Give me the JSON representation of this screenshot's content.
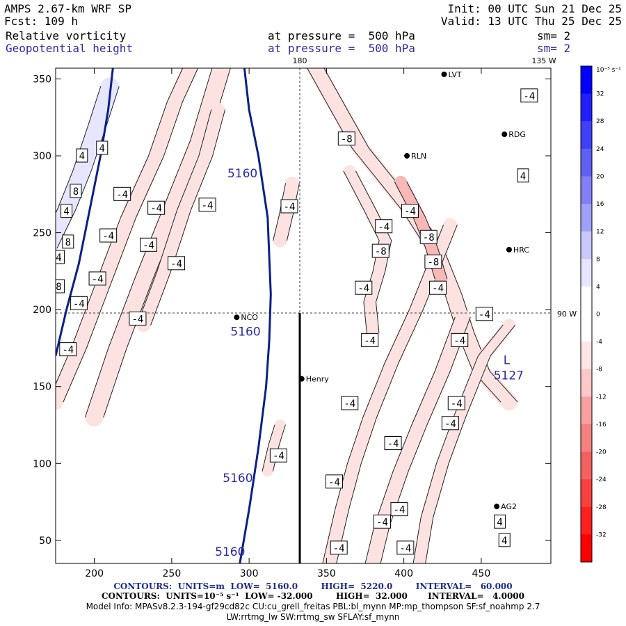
{
  "header": {
    "model": "AMPS 2.67-km WRF SP",
    "forecast": "Fcst: 109 h",
    "init": "Init: 00 UTC Sun 21 Dec 25",
    "valid": "Valid: 13 UTC Thu 25 Dec 25",
    "field1_name": "Relative vorticity",
    "field1_level": "at pressure =  500 hPa",
    "field1_smooth": "sm= 2",
    "field2_name": "Geopotential height",
    "field2_level": "at pressure =  500 hPa",
    "field2_smooth": "sm= 2"
  },
  "map_labels": {
    "lon_180": "180",
    "lon_135w": "135 W",
    "lon_90w": "90 W",
    "low_letter": "L",
    "low_value": "5127"
  },
  "stations": [
    {
      "name": "NCO",
      "x": 292,
      "y": 195
    },
    {
      "name": "Henry",
      "x": 334,
      "y": 155
    },
    {
      "name": "HRC",
      "x": 468,
      "y": 239
    },
    {
      "name": "AG2",
      "x": 460,
      "y": 72
    },
    {
      "name": "RLN",
      "x": 402,
      "y": 300
    },
    {
      "name": "RDG",
      "x": 465,
      "y": 314
    },
    {
      "name": "LVT",
      "x": 426,
      "y": 353
    }
  ],
  "colorbar": {
    "unit_label": "10⁻⁵ s⁻¹",
    "ticks": [
      "32",
      "28",
      "24",
      "20",
      "16",
      "12",
      "8",
      "4",
      "0",
      "-4",
      "-8",
      "-12",
      "-16",
      "-20",
      "-24",
      "-28",
      "-32"
    ],
    "colors": [
      "#0000ff",
      "#2020ff",
      "#4040f8",
      "#6060f4",
      "#8080f4",
      "#a0a0f8",
      "#c8c8fc",
      "#e6e6ff",
      "#ffffff",
      "#ffffff",
      "#ffe6e6",
      "#fcc8c8",
      "#f8a0a0",
      "#f48080",
      "#f46060",
      "#f84040",
      "#ff2020",
      "#ff0000"
    ]
  },
  "chart_data": {
    "type": "contour",
    "x_ticks": [
      200,
      250,
      300,
      350,
      400,
      450
    ],
    "y_ticks": [
      50,
      100,
      150,
      200,
      250,
      300,
      350
    ],
    "xlim": [
      175,
      495
    ],
    "ylim": [
      35,
      357
    ],
    "height_contours": [
      {
        "label": "5160",
        "points": [
          [
            175,
            170
          ],
          [
            182,
            200
          ],
          [
            190,
            230
          ],
          [
            198,
            270
          ],
          [
            204,
            300
          ],
          [
            209,
            330
          ],
          [
            212,
            357
          ]
        ]
      },
      {
        "label": "5160",
        "points": [
          [
            294,
            35
          ],
          [
            300,
            70
          ],
          [
            306,
            110
          ],
          [
            311,
            150
          ],
          [
            313,
            180
          ],
          [
            314,
            210
          ],
          [
            312,
            260
          ],
          [
            306,
            300
          ],
          [
            300,
            330
          ],
          [
            297,
            357
          ]
        ]
      }
    ],
    "height_contour_labels": [
      {
        "text": "5160",
        "x": 286,
        "y": 286
      },
      {
        "text": "5160",
        "x": 288,
        "y": 183
      },
      {
        "text": "5160",
        "x": 283,
        "y": 88
      },
      {
        "text": "5160",
        "x": 278,
        "y": 40
      }
    ],
    "vorticity_labels": [
      {
        "text": "4",
        "x": 205,
        "y": 305
      },
      {
        "text": "4",
        "x": 192,
        "y": 300
      },
      {
        "text": "8",
        "x": 188,
        "y": 277
      },
      {
        "text": "4",
        "x": 182,
        "y": 264
      },
      {
        "text": "8",
        "x": 183,
        "y": 244
      },
      {
        "text": "4",
        "x": 177,
        "y": 234
      },
      {
        "text": "8",
        "x": 177,
        "y": 215
      },
      {
        "text": "-4",
        "x": 218,
        "y": 275
      },
      {
        "text": "-4",
        "x": 209,
        "y": 248
      },
      {
        "text": "-4",
        "x": 202,
        "y": 220
      },
      {
        "text": "-4",
        "x": 190,
        "y": 204
      },
      {
        "text": "-4",
        "x": 183,
        "y": 174
      },
      {
        "text": "-4",
        "x": 240,
        "y": 266
      },
      {
        "text": "-4",
        "x": 235,
        "y": 242
      },
      {
        "text": "-4",
        "x": 228,
        "y": 194
      },
      {
        "text": "-4",
        "x": 253,
        "y": 230
      },
      {
        "text": "-4",
        "x": 273,
        "y": 268
      },
      {
        "text": "-4",
        "x": 326,
        "y": 267
      },
      {
        "text": "-8",
        "x": 363,
        "y": 311
      },
      {
        "text": "-4",
        "x": 404,
        "y": 264
      },
      {
        "text": "-4",
        "x": 387,
        "y": 254
      },
      {
        "text": "-8",
        "x": 416,
        "y": 247
      },
      {
        "text": "-8",
        "x": 385,
        "y": 238
      },
      {
        "text": "-8",
        "x": 419,
        "y": 231
      },
      {
        "text": "-4",
        "x": 374,
        "y": 214
      },
      {
        "text": "-4",
        "x": 422,
        "y": 214
      },
      {
        "text": "-4",
        "x": 452,
        "y": 197
      },
      {
        "text": "-4",
        "x": 378,
        "y": 180
      },
      {
        "text": "-4",
        "x": 436,
        "y": 180
      },
      {
        "text": "-4",
        "x": 365,
        "y": 139
      },
      {
        "text": "-4",
        "x": 434,
        "y": 139
      },
      {
        "text": "-4",
        "x": 430,
        "y": 126
      },
      {
        "text": "-4",
        "x": 393,
        "y": 113
      },
      {
        "text": "-4",
        "x": 319,
        "y": 105
      },
      {
        "text": "-4",
        "x": 355,
        "y": 88
      },
      {
        "text": "-4",
        "x": 397,
        "y": 70
      },
      {
        "text": "-4",
        "x": 386,
        "y": 62
      },
      {
        "text": "-4",
        "x": 401,
        "y": 45
      },
      {
        "text": "-4",
        "x": 358,
        "y": 45
      },
      {
        "text": "4",
        "x": 462,
        "y": 62
      },
      {
        "text": "4",
        "x": 465,
        "y": 50
      },
      {
        "text": "4",
        "x": 477,
        "y": 287
      },
      {
        "text": "-4",
        "x": 481,
        "y": 339
      }
    ],
    "low_center": {
      "x": 467,
      "y": 160,
      "value": 5127
    }
  },
  "footer": {
    "contour1": "CONTOURS:  UNITS=m  LOW=  5160.0        HIGH=  5220.0        INTERVAL=   60.000",
    "contour2": "CONTOURS:  UNITS=10⁻⁵ s⁻¹  LOW= -32.000        HIGH=  32.000       INTERVAL=   4.0000",
    "model_info": "Model Info: MPASv8.2.3-194-gf29cd82c CU:cu_grell_freitas PBL:bl_mynn MP:mp_thompson SF:sf_noahmp 2.7",
    "model_info2": "LW:rrtmg_lw SW:rrtmg_sw SFLAY:sf_mynn"
  }
}
